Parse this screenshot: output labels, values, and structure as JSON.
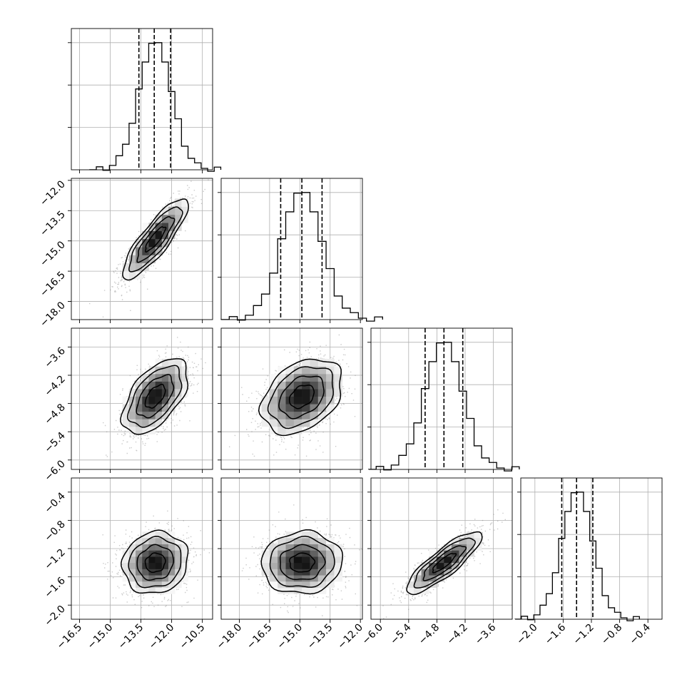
{
  "chart_data": {
    "type": "corner",
    "parameters": [
      {
        "range": [
          -16.9,
          -10.0
        ],
        "ticks": [
          "−16.5",
          "−15.0",
          "−13.5",
          "−12.0",
          "−10.5"
        ],
        "tick_values": [
          -16.5,
          -15.0,
          -13.5,
          -12.0,
          -10.5
        ],
        "mean": -12.8,
        "sd": 0.8,
        "quantiles": [
          -13.6,
          -12.85,
          -12.05
        ]
      },
      {
        "range": [
          -18.9,
          -11.9
        ],
        "ticks": [
          "−18.0",
          "−16.5",
          "−15.0",
          "−13.5",
          "−12.0"
        ],
        "tick_values": [
          -18.0,
          -16.5,
          -15.0,
          -13.5,
          -12.0
        ],
        "mean": -14.9,
        "sd": 1.0,
        "quantiles": [
          -15.95,
          -14.9,
          -13.9
        ]
      },
      {
        "range": [
          -6.2,
          -3.2
        ],
        "ticks": [
          "−6.0",
          "−5.4",
          "−4.8",
          "−4.2",
          "−3.6"
        ],
        "tick_values": [
          -6.0,
          -5.4,
          -4.8,
          -4.2,
          -3.6
        ],
        "mean": -4.65,
        "sd": 0.4,
        "quantiles": [
          -5.05,
          -4.65,
          -4.25
        ]
      },
      {
        "range": [
          -2.2,
          -0.2
        ],
        "ticks": [
          "−2.0",
          "−1.6",
          "−1.2",
          "−0.8",
          "−0.4"
        ],
        "tick_values": [
          -2.0,
          -1.6,
          -1.2,
          -0.8,
          -0.4
        ],
        "mean": -1.4,
        "sd": 0.22,
        "quantiles": [
          -1.62,
          -1.41,
          -1.18
        ]
      }
    ],
    "correlations": {
      "1-0": 0.85,
      "2-0": 0.55,
      "2-1": 0.35,
      "3-0": 0.1,
      "3-1": 0.05,
      "3-2": 0.85
    },
    "histogram_bins": 20,
    "grid": true,
    "quantile_line_style": "dashed"
  }
}
